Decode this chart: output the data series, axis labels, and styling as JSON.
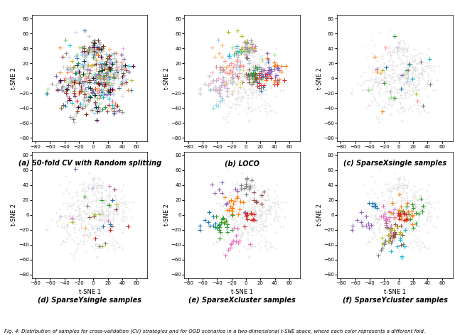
{
  "caption_fig": "Fig. 4: Distribution of samples for cross-validation (CV) strategies and for OOD scenarios in a two-dimensional t-SNE space, where each color represents a different fold.",
  "subplot_labels": [
    "(a) 50-fold CV with Random splitting",
    "(b) LOCO",
    "(c) SparseXsingle samples",
    "(d) SparseYsingle samples",
    "(e) SparseXcluster samples",
    "(f) SparseYcluster samples"
  ],
  "xlabel": "t-SNE 1",
  "ylabel": "t-SNE 2",
  "xlim": [
    -85,
    75
  ],
  "ylim": [
    -85,
    85
  ],
  "background_color": "#ffffff",
  "point_size": 18,
  "marker": "+",
  "n_points": 500,
  "random_seed": 42,
  "n_clusters_data": 30,
  "colors_many": [
    "#1f77b4",
    "#ff7f0e",
    "#2ca02c",
    "#d62728",
    "#9467bd",
    "#8c564b",
    "#e377c2",
    "#7f7f7f",
    "#bcbd22",
    "#17becf",
    "#aec7e8",
    "#ffbb78",
    "#98df8a",
    "#ff9896",
    "#c5b0d5",
    "#c49c94",
    "#f7b6d2",
    "#c7c7c7",
    "#dbdb8d",
    "#9edae5",
    "#393b79",
    "#637939",
    "#8c6d31",
    "#843c39",
    "#7b4173",
    "#3182bd",
    "#e6550d",
    "#31a354",
    "#756bb1",
    "#636363",
    "#6baed6",
    "#fd8d3c",
    "#74c476",
    "#9e9ac8",
    "#969696",
    "#9ecae1",
    "#fdae6b",
    "#a1d99b",
    "#bcbddc",
    "#bdbdbd",
    "#c6dbef",
    "#fdd0a2",
    "#c7e9c0",
    "#dadaeb",
    "#d9d9d9",
    "#08306b",
    "#00441b",
    "#40004b",
    "#7f2704",
    "#252525"
  ],
  "gray_color": "#cccccc",
  "lw": 0.8,
  "tick_fontsize": 5,
  "label_fontsize": 6,
  "caption_fontsize": 5,
  "subplot_label_fontsize": 7
}
